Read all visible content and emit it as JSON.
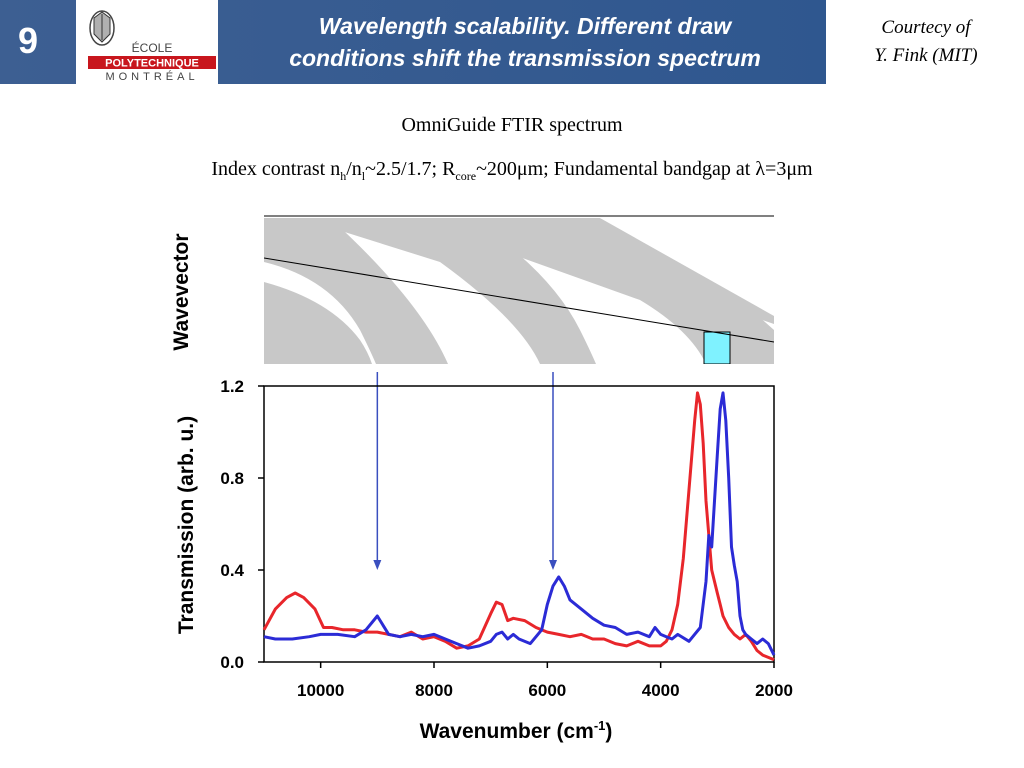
{
  "header": {
    "slide_number": "9",
    "title_line1": "Wavelength scalability. Different draw",
    "title_line2": "conditions shift the transmission spectrum",
    "logo_line1": "ÉCOLE",
    "logo_line2": "POLYTECHNIQUE",
    "logo_line3": "MONTRÉAL"
  },
  "courtesy": {
    "line1": "Courtecy of",
    "line2": "Y. Fink (MIT)"
  },
  "subtitle": {
    "line1": "OmniGuide FTIR spectrum",
    "line2_parts": [
      "Index contrast n",
      "h",
      "/n",
      "l",
      "~2.5/1.7; R",
      "core",
      "~200μm; Fundamental bandgap at λ=3μm"
    ]
  },
  "colors": {
    "header_bg": "#3d5f92",
    "band_gray": "#c8c8c8",
    "bandgap_cyan": "#7ff2ff",
    "series_red": "#e8262b",
    "series_blue": "#2b2bd6",
    "arrow": "#3a4fbf"
  },
  "band_diagram": {
    "ylabel": "Wavevector",
    "highlight": "bandgap"
  },
  "arrows_x": [
    9000,
    5900
  ],
  "chart_data": {
    "type": "line",
    "title": "",
    "xlabel": "Wavenumber (cm-1)",
    "ylabel": "Transmission (arb. u.)",
    "xlim": [
      11000,
      2000
    ],
    "ylim": [
      0,
      1.2
    ],
    "xticks": [
      10000,
      8000,
      6000,
      4000,
      2000
    ],
    "xtick_labels": [
      "10000",
      "8000",
      "6000",
      "4000",
      "2000"
    ],
    "yticks": [
      0,
      0.4,
      0.8,
      1.2
    ],
    "ytick_labels": [
      "0.0",
      "0.4",
      "0.8",
      "1.2"
    ],
    "grid": false,
    "legend": "none",
    "series": [
      {
        "color": "#e8262b",
        "x": [
          11000,
          10800,
          10600,
          10450,
          10300,
          10100,
          9950,
          9800,
          9600,
          9400,
          9200,
          9000,
          8800,
          8600,
          8400,
          8200,
          8000,
          7800,
          7600,
          7400,
          7200,
          7000,
          6900,
          6800,
          6700,
          6600,
          6400,
          6200,
          6000,
          5800,
          5600,
          5400,
          5200,
          5000,
          4800,
          4600,
          4400,
          4200,
          4000,
          3900,
          3800,
          3700,
          3600,
          3500,
          3400,
          3350,
          3300,
          3250,
          3200,
          3100,
          3000,
          2950,
          2900,
          2800,
          2700,
          2600,
          2500,
          2400,
          2300,
          2200,
          2100,
          2000
        ],
        "y": [
          0.14,
          0.23,
          0.28,
          0.3,
          0.28,
          0.23,
          0.15,
          0.15,
          0.14,
          0.14,
          0.13,
          0.13,
          0.12,
          0.11,
          0.13,
          0.1,
          0.11,
          0.09,
          0.06,
          0.07,
          0.1,
          0.21,
          0.26,
          0.25,
          0.18,
          0.19,
          0.18,
          0.15,
          0.13,
          0.12,
          0.11,
          0.12,
          0.1,
          0.1,
          0.08,
          0.07,
          0.09,
          0.07,
          0.07,
          0.09,
          0.14,
          0.25,
          0.45,
          0.75,
          1.05,
          1.17,
          1.12,
          0.95,
          0.7,
          0.4,
          0.3,
          0.25,
          0.2,
          0.15,
          0.12,
          0.1,
          0.12,
          0.09,
          0.05,
          0.03,
          0.02,
          0.01
        ]
      },
      {
        "color": "#2b2bd6",
        "x": [
          11000,
          10800,
          10500,
          10200,
          10000,
          9700,
          9400,
          9200,
          9000,
          8800,
          8600,
          8400,
          8200,
          8000,
          7800,
          7600,
          7400,
          7200,
          7000,
          6900,
          6800,
          6700,
          6600,
          6500,
          6300,
          6100,
          6000,
          5900,
          5800,
          5700,
          5600,
          5400,
          5200,
          5000,
          4800,
          4600,
          4400,
          4200,
          4100,
          4000,
          3900,
          3800,
          3700,
          3500,
          3300,
          3200,
          3150,
          3100,
          3050,
          3000,
          2950,
          2900,
          2850,
          2800,
          2750,
          2700,
          2650,
          2600,
          2550,
          2500,
          2400,
          2300,
          2200,
          2100,
          2000
        ],
        "y": [
          0.11,
          0.1,
          0.1,
          0.11,
          0.12,
          0.12,
          0.11,
          0.14,
          0.2,
          0.12,
          0.11,
          0.12,
          0.11,
          0.12,
          0.1,
          0.08,
          0.06,
          0.07,
          0.09,
          0.12,
          0.13,
          0.1,
          0.12,
          0.1,
          0.08,
          0.14,
          0.25,
          0.33,
          0.37,
          0.33,
          0.27,
          0.23,
          0.19,
          0.16,
          0.15,
          0.12,
          0.13,
          0.11,
          0.15,
          0.12,
          0.11,
          0.1,
          0.12,
          0.09,
          0.15,
          0.35,
          0.55,
          0.5,
          0.7,
          0.9,
          1.1,
          1.17,
          1.05,
          0.8,
          0.5,
          0.42,
          0.35,
          0.2,
          0.14,
          0.12,
          0.1,
          0.08,
          0.1,
          0.08,
          0.03
        ]
      }
    ]
  }
}
